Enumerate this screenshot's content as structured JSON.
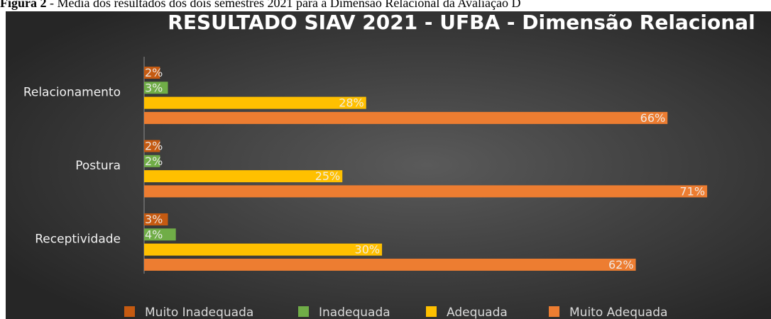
{
  "caption_label": "Figura 2",
  "caption": "- Média dos resultados dos dois semestres 2021 para a Dimensão Relacional da Avaliação D",
  "chart_data": {
    "type": "barh",
    "title": "RESULTADO SIAV 2021 - UFBA - Dimensão Relacional",
    "categories": [
      "Relacionamento",
      "Postura",
      "Receptividade"
    ],
    "series": [
      {
        "name": "Muito Inadequada",
        "color": "#c55a11",
        "values": [
          2,
          2,
          3
        ],
        "value_labels": [
          "2%",
          "2%",
          "3%"
        ]
      },
      {
        "name": "Inadequada",
        "color": "#70ad47",
        "values": [
          3,
          2,
          4
        ],
        "value_labels": [
          "3%",
          "2%",
          "4%"
        ]
      },
      {
        "name": "Adequada",
        "color": "#ffc000",
        "values": [
          28,
          25,
          30
        ],
        "value_labels": [
          "28%",
          "25%",
          "30%"
        ]
      },
      {
        "name": "Muito Adequada",
        "color": "#ed7d31",
        "values": [
          66,
          71,
          62
        ],
        "value_labels": [
          "66%",
          "71%",
          "62%"
        ]
      }
    ],
    "legend": "bottom"
  }
}
